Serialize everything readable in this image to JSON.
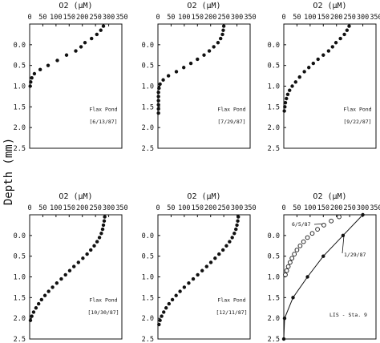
{
  "figure": {
    "y_axis_label": "Depth (mm)"
  },
  "chart_data": [
    {
      "type": "scatter",
      "title": "O2 (µM)",
      "xlim": [
        0,
        350
      ],
      "ylim": [
        -0.5,
        2.5
      ],
      "x_ticks": [
        "0",
        "50",
        "100",
        "150",
        "200",
        "250",
        "300",
        "350"
      ],
      "y_ticks": [
        "0.0",
        "0.5",
        "1.0",
        "1.5",
        "2.0",
        "2.5"
      ],
      "annotation": [
        "Flax Pond",
        "[6/13/87]"
      ],
      "points": [
        [
          280,
          -0.45
        ],
        [
          270,
          -0.35
        ],
        [
          255,
          -0.25
        ],
        [
          235,
          -0.15
        ],
        [
          210,
          -0.05
        ],
        [
          195,
          0.05
        ],
        [
          175,
          0.15
        ],
        [
          140,
          0.25
        ],
        [
          105,
          0.38
        ],
        [
          70,
          0.5
        ],
        [
          40,
          0.6
        ],
        [
          18,
          0.7
        ],
        [
          8,
          0.8
        ],
        [
          4,
          0.9
        ],
        [
          2,
          1.0
        ]
      ]
    },
    {
      "type": "scatter",
      "title": "O2 (µM)",
      "xlim": [
        0,
        350
      ],
      "ylim": [
        -0.5,
        2.5
      ],
      "x_ticks": [
        "0",
        "50",
        "100",
        "150",
        "200",
        "250",
        "300",
        "350"
      ],
      "y_ticks": [
        "0.0",
        "0.5",
        "1.0",
        "1.5",
        "2.0",
        "2.5"
      ],
      "annotation": [
        "Flax Pond",
        "[7/29/87]"
      ],
      "points": [
        [
          250,
          -0.45
        ],
        [
          248,
          -0.35
        ],
        [
          245,
          -0.25
        ],
        [
          238,
          -0.15
        ],
        [
          228,
          -0.05
        ],
        [
          212,
          0.05
        ],
        [
          195,
          0.15
        ],
        [
          175,
          0.25
        ],
        [
          150,
          0.35
        ],
        [
          125,
          0.45
        ],
        [
          98,
          0.55
        ],
        [
          70,
          0.65
        ],
        [
          40,
          0.75
        ],
        [
          20,
          0.85
        ],
        [
          8,
          0.95
        ],
        [
          4,
          1.05
        ],
        [
          2,
          1.15
        ],
        [
          2,
          1.25
        ],
        [
          2,
          1.35
        ],
        [
          2,
          1.45
        ],
        [
          2,
          1.55
        ],
        [
          2,
          1.65
        ]
      ]
    },
    {
      "type": "scatter",
      "title": "O2 (µM)",
      "xlim": [
        0,
        350
      ],
      "ylim": [
        -0.5,
        2.5
      ],
      "x_ticks": [
        "0",
        "50",
        "100",
        "150",
        "200",
        "250",
        "300",
        "350"
      ],
      "y_ticks": [
        "0.0",
        "0.5",
        "1.0",
        "1.5",
        "2.0",
        "2.5"
      ],
      "annotation": [
        "Flax Pond",
        "[9/22/87]"
      ],
      "points": [
        [
          248,
          -0.45
        ],
        [
          240,
          -0.35
        ],
        [
          230,
          -0.25
        ],
        [
          215,
          -0.15
        ],
        [
          198,
          -0.05
        ],
        [
          185,
          0.05
        ],
        [
          170,
          0.15
        ],
        [
          150,
          0.25
        ],
        [
          130,
          0.35
        ],
        [
          112,
          0.45
        ],
        [
          95,
          0.55
        ],
        [
          78,
          0.65
        ],
        [
          60,
          0.78
        ],
        [
          45,
          0.9
        ],
        [
          32,
          1.0
        ],
        [
          22,
          1.1
        ],
        [
          15,
          1.2
        ],
        [
          10,
          1.3
        ],
        [
          6,
          1.4
        ],
        [
          4,
          1.5
        ],
        [
          2,
          1.6
        ]
      ]
    },
    {
      "type": "scatter",
      "title": "O2 (µM)",
      "xlim": [
        0,
        350
      ],
      "ylim": [
        -0.5,
        2.5
      ],
      "x_ticks": [
        "0",
        "50",
        "100",
        "150",
        "200",
        "250",
        "300",
        "350"
      ],
      "y_ticks": [
        "0.0",
        "0.5",
        "1.0",
        "1.5",
        "2.0",
        "2.5"
      ],
      "annotation": [
        "Flax Pond",
        "[10/30/87]"
      ],
      "points": [
        [
          285,
          -0.45
        ],
        [
          283,
          -0.35
        ],
        [
          280,
          -0.25
        ],
        [
          277,
          -0.15
        ],
        [
          272,
          -0.05
        ],
        [
          265,
          0.05
        ],
        [
          256,
          0.15
        ],
        [
          245,
          0.25
        ],
        [
          232,
          0.35
        ],
        [
          218,
          0.45
        ],
        [
          202,
          0.55
        ],
        [
          185,
          0.65
        ],
        [
          168,
          0.75
        ],
        [
          152,
          0.85
        ],
        [
          136,
          0.95
        ],
        [
          120,
          1.05
        ],
        [
          103,
          1.15
        ],
        [
          87,
          1.25
        ],
        [
          72,
          1.35
        ],
        [
          58,
          1.45
        ],
        [
          45,
          1.55
        ],
        [
          34,
          1.65
        ],
        [
          24,
          1.75
        ],
        [
          15,
          1.85
        ],
        [
          8,
          1.95
        ],
        [
          3,
          2.05
        ]
      ]
    },
    {
      "type": "scatter",
      "title": "O2 (µM)",
      "xlim": [
        0,
        350
      ],
      "ylim": [
        -0.5,
        2.5
      ],
      "x_ticks": [
        "0",
        "50",
        "100",
        "150",
        "200",
        "250",
        "300",
        "350"
      ],
      "y_ticks": [
        "0.0",
        "0.5",
        "1.0",
        "1.5",
        "2.0",
        "2.5"
      ],
      "annotation": [
        "Flax Pond",
        "[12/11/87]"
      ],
      "points": [
        [
          305,
          -0.45
        ],
        [
          303,
          -0.35
        ],
        [
          300,
          -0.25
        ],
        [
          296,
          -0.15
        ],
        [
          290,
          -0.05
        ],
        [
          282,
          0.05
        ],
        [
          272,
          0.15
        ],
        [
          260,
          0.25
        ],
        [
          247,
          0.35
        ],
        [
          232,
          0.45
        ],
        [
          217,
          0.55
        ],
        [
          201,
          0.65
        ],
        [
          185,
          0.75
        ],
        [
          168,
          0.85
        ],
        [
          151,
          0.95
        ],
        [
          134,
          1.05
        ],
        [
          117,
          1.15
        ],
        [
          100,
          1.25
        ],
        [
          84,
          1.35
        ],
        [
          69,
          1.45
        ],
        [
          55,
          1.55
        ],
        [
          42,
          1.65
        ],
        [
          31,
          1.75
        ],
        [
          22,
          1.85
        ],
        [
          14,
          1.95
        ],
        [
          8,
          2.05
        ],
        [
          4,
          2.15
        ]
      ]
    },
    {
      "type": "line",
      "title": "O2 (µM)",
      "xlim": [
        0,
        350
      ],
      "ylim": [
        -0.5,
        2.5
      ],
      "x_ticks": [
        "0",
        "50",
        "100",
        "150",
        "200",
        "250",
        "300",
        "350"
      ],
      "y_ticks": [
        "0.0",
        "0.5",
        "1.0",
        "1.5",
        "2.0",
        "2.5"
      ],
      "annotation": [
        "LIS - Sta. 9"
      ],
      "series": [
        {
          "name": "6/5/87",
          "marker": "open",
          "points": [
            [
              210,
              -0.45
            ],
            [
              180,
              -0.35
            ],
            [
              152,
              -0.25
            ],
            [
              128,
              -0.15
            ],
            [
              108,
              -0.05
            ],
            [
              90,
              0.05
            ],
            [
              75,
              0.15
            ],
            [
              62,
              0.25
            ],
            [
              50,
              0.35
            ],
            [
              40,
              0.45
            ],
            [
              31,
              0.55
            ],
            [
              24,
              0.65
            ],
            [
              17,
              0.75
            ],
            [
              11,
              0.85
            ],
            [
              6,
              0.95
            ]
          ]
        },
        {
          "name": "1/29/87",
          "marker": "filled",
          "line": true,
          "points": [
            [
              300,
              -0.5
            ],
            [
              225,
              0.0
            ],
            [
              150,
              0.5
            ],
            [
              90,
              1.0
            ],
            [
              35,
              1.5
            ],
            [
              3,
              2.0
            ],
            [
              0,
              2.5
            ]
          ]
        }
      ]
    }
  ]
}
